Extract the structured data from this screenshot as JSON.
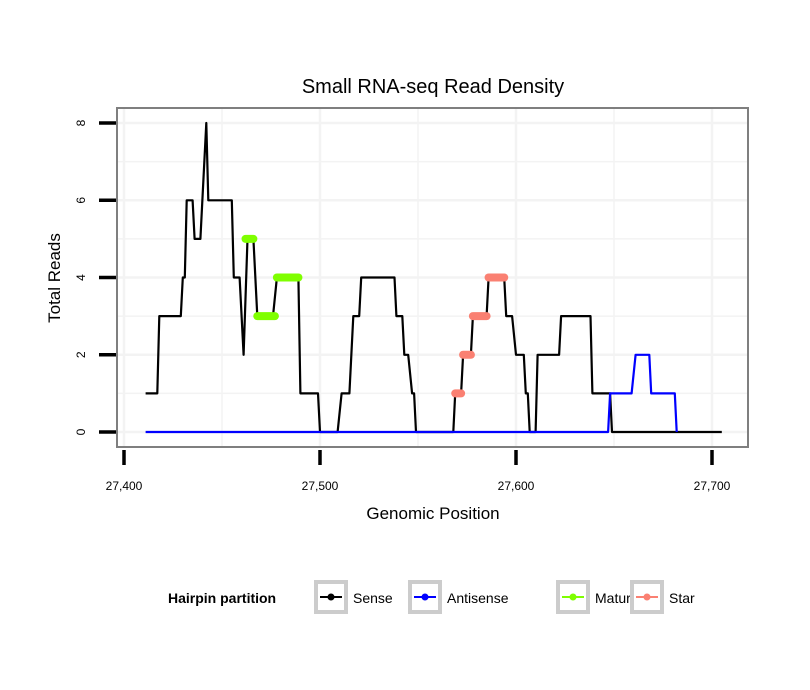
{
  "chart_data": {
    "type": "line",
    "title": "Small RNA-seq Read Density",
    "xlabel": "Genomic Position",
    "ylabel": "Total Reads",
    "xlim": [
      27389,
      27722
    ],
    "ylim": [
      -0.4,
      8.4
    ],
    "x_ticks": [
      27400,
      27500,
      27600,
      27700
    ],
    "x_tick_labels": [
      "27,400",
      "27,500",
      "27,600",
      "27,700"
    ],
    "y_ticks": [
      0,
      2,
      4,
      6,
      8
    ],
    "y_tick_labels": [
      "0",
      "2",
      "4",
      "6",
      "8"
    ],
    "grid": true,
    "legend": {
      "title": "Hairpin partition",
      "placement": "bottom",
      "entries": [
        {
          "name": "Sense",
          "color": "#000000"
        },
        {
          "name": "Antisense",
          "color": "#0000FF"
        },
        {
          "name": "Mature",
          "color": "#7FFF00"
        },
        {
          "name": "Star",
          "color": "#FA8072"
        }
      ]
    },
    "series": [
      {
        "name": "Sense",
        "color": "#000000",
        "points": [
          [
            27411,
            1
          ],
          [
            27417,
            1
          ],
          [
            27418,
            3
          ],
          [
            27429,
            3
          ],
          [
            27430,
            4
          ],
          [
            27431,
            4
          ],
          [
            27432,
            6
          ],
          [
            27435,
            6
          ],
          [
            27436,
            5
          ],
          [
            27439,
            5
          ],
          [
            27442,
            8
          ],
          [
            27443,
            6
          ],
          [
            27455,
            6
          ],
          [
            27456,
            4
          ],
          [
            27459,
            4
          ],
          [
            27461,
            2
          ],
          [
            27463,
            5
          ],
          [
            27466,
            5
          ],
          [
            27468,
            3
          ],
          [
            27476,
            3
          ],
          [
            27478,
            4
          ],
          [
            27489,
            4
          ],
          [
            27490,
            1
          ],
          [
            27499,
            1
          ],
          [
            27500,
            0
          ],
          [
            27509,
            0
          ],
          [
            27511,
            1
          ],
          [
            27515,
            1
          ],
          [
            27517,
            3
          ],
          [
            27520,
            3
          ],
          [
            27521,
            4
          ],
          [
            27538,
            4
          ],
          [
            27539,
            3
          ],
          [
            27542,
            3
          ],
          [
            27543,
            2
          ],
          [
            27545,
            2
          ],
          [
            27547,
            1
          ],
          [
            27548,
            1
          ],
          [
            27549,
            0
          ],
          [
            27568,
            0
          ],
          [
            27569,
            1
          ],
          [
            27572,
            1
          ],
          [
            27573,
            2
          ],
          [
            27577,
            2
          ],
          [
            27578,
            3
          ],
          [
            27585,
            3
          ],
          [
            27586,
            4
          ],
          [
            27594,
            4
          ],
          [
            27595,
            3
          ],
          [
            27598,
            3
          ],
          [
            27600,
            2
          ],
          [
            27604,
            2
          ],
          [
            27605,
            1
          ],
          [
            27606,
            1
          ],
          [
            27607,
            0
          ],
          [
            27610,
            0
          ],
          [
            27611,
            2
          ],
          [
            27622,
            2
          ],
          [
            27623,
            3
          ],
          [
            27638,
            3
          ],
          [
            27639,
            1
          ],
          [
            27648,
            1
          ],
          [
            27649,
            0
          ],
          [
            27705,
            0
          ]
        ]
      },
      {
        "name": "Antisense",
        "color": "#0000FF",
        "points": [
          [
            27411,
            0
          ],
          [
            27647,
            0
          ],
          [
            27648,
            1
          ],
          [
            27659,
            1
          ],
          [
            27661,
            2
          ],
          [
            27668,
            2
          ],
          [
            27669,
            1
          ],
          [
            27681,
            1
          ],
          [
            27682,
            0
          ]
        ]
      },
      {
        "name": "Mature",
        "color": "#7FFF00",
        "segments": [
          {
            "x": [
              27462,
              27466
            ],
            "y": 5
          },
          {
            "x": [
              27468,
              27477
            ],
            "y": 3
          },
          {
            "x": [
              27478,
              27489
            ],
            "y": 4
          }
        ]
      },
      {
        "name": "Star",
        "color": "#FA8072",
        "segments": [
          {
            "x": [
              27569,
              27572
            ],
            "y": 1
          },
          {
            "x": [
              27573,
              27577
            ],
            "y": 2
          },
          {
            "x": [
              27578,
              27585
            ],
            "y": 3
          },
          {
            "x": [
              27586,
              27594
            ],
            "y": 4
          }
        ]
      }
    ]
  }
}
